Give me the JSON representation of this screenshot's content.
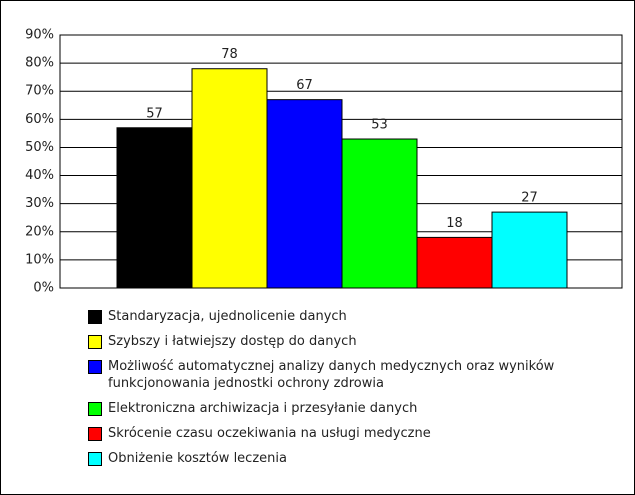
{
  "chart_data": {
    "type": "bar",
    "categories": [
      null
    ],
    "series": [
      {
        "name": "Standaryzacja, ujednolicenie danych",
        "color": "#000000",
        "values": [
          57
        ]
      },
      {
        "name": "Szybszy i  łatwiejszy dostęp do danych",
        "color": "#ffff00",
        "values": [
          78
        ]
      },
      {
        "name": "Możliwość automatycznej analizy danych medycznych oraz wyników funkcjonowania jednostki ochrony zdrowia",
        "color": "#0000ff",
        "values": [
          67
        ]
      },
      {
        "name": "Elektroniczna archiwizacja i przesyłanie danych",
        "color": "#00ff00",
        "values": [
          53
        ]
      },
      {
        "name": "Skrócenie czasu oczekiwania na usługi medyczne",
        "color": "#ff0000",
        "values": [
          18
        ]
      },
      {
        "name": "Obniżenie kosztów leczenia",
        "color": "#00ffff",
        "values": [
          27
        ]
      }
    ],
    "ylim": [
      0,
      90
    ],
    "yticks": [
      {
        "value": 0,
        "label": "0%"
      },
      {
        "value": 10,
        "label": "10%"
      },
      {
        "value": 20,
        "label": "20%"
      },
      {
        "value": 30,
        "label": "30%"
      },
      {
        "value": 40,
        "label": "40%"
      },
      {
        "value": 50,
        "label": "50%"
      },
      {
        "value": 60,
        "label": "60%"
      },
      {
        "value": 70,
        "label": "70%"
      },
      {
        "value": 80,
        "label": "80%"
      },
      {
        "value": 90,
        "label": "90%"
      }
    ],
    "grid": true,
    "legend": "bottom"
  }
}
